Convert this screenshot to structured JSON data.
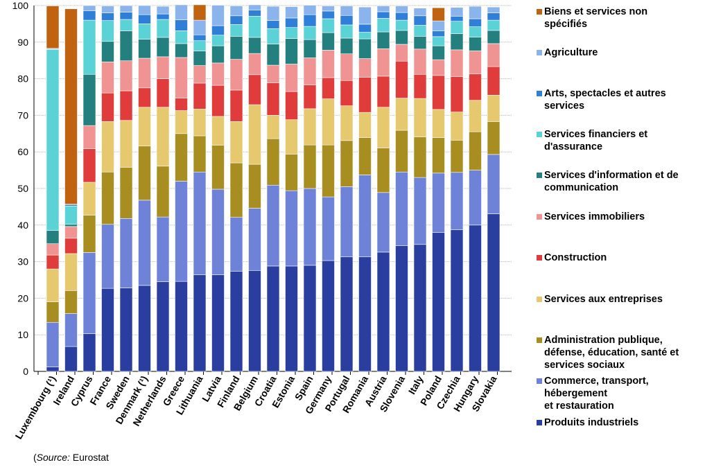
{
  "chart_data": {
    "type": "bar",
    "stacked": true,
    "ylim": [
      0,
      100
    ],
    "yticks": [
      0,
      10,
      20,
      30,
      40,
      50,
      60,
      70,
      80,
      90,
      100
    ],
    "grid": true,
    "legend_position": "right",
    "categories": [
      "Luxembourg (¹)",
      "Ireland",
      "Cyprus",
      "France",
      "Sweden",
      "Denmark (¹)",
      "Netherlands",
      "Greece",
      "Lithuania",
      "Latvia",
      "Finland",
      "Belgium",
      "Croatia",
      "Estonia",
      "Spain",
      "Germany",
      "Portugal",
      "Romania",
      "Austria",
      "Slovenia",
      "Italy",
      "Poland",
      "Czechia",
      "Hungary",
      "Slovakia"
    ],
    "series": [
      {
        "name": "Produits industriels",
        "color": "#2a3e9f",
        "values": [
          1.2,
          6.8,
          10.3,
          22.7,
          22.8,
          23.5,
          24.5,
          24.6,
          26.4,
          26.4,
          27.4,
          27.6,
          28.8,
          28.8,
          29.0,
          30.3,
          31.3,
          31.3,
          32.6,
          34.4,
          34.7,
          38.0,
          38.7,
          40.0,
          43.1
        ]
      },
      {
        "name": "Commerce, transport, hébergement\net restauration",
        "color": "#6e82d8",
        "values": [
          12.2,
          9.0,
          22.2,
          17.5,
          19.0,
          23.3,
          17.7,
          27.4,
          28.1,
          23.4,
          14.7,
          17.0,
          22.1,
          20.6,
          21.0,
          17.4,
          19.2,
          22.4,
          16.3,
          20.1,
          18.3,
          16.2,
          15.7,
          15.0,
          16.2
        ]
      },
      {
        "name": "Administration publique,\ndéfense, éducation, santé et\nservices sociaux",
        "color": "#a88d21",
        "values": [
          5.6,
          6.3,
          10.2,
          14.3,
          14.0,
          14.8,
          13.9,
          13.0,
          9.9,
          12.0,
          14.9,
          12.0,
          12.7,
          10.0,
          11.9,
          14.2,
          12.6,
          10.2,
          12.2,
          11.4,
          11.1,
          9.7,
          8.8,
          10.5,
          9.0
        ]
      },
      {
        "name": "Services aux entreprises",
        "color": "#e6c86e",
        "values": [
          9.0,
          10.1,
          9.0,
          13.8,
          12.8,
          10.6,
          16.1,
          6.3,
          7.3,
          7.9,
          11.3,
          16.3,
          6.4,
          9.4,
          9.9,
          12.6,
          9.5,
          6.9,
          11.1,
          8.8,
          10.5,
          7.7,
          7.7,
          8.6,
          7.2
        ]
      },
      {
        "name": "Construction",
        "color": "#e03c3c",
        "values": [
          3.8,
          4.2,
          9.2,
          7.8,
          8.1,
          5.3,
          7.8,
          3.4,
          7.1,
          8.5,
          8.6,
          8.2,
          8.9,
          7.7,
          6.5,
          5.8,
          6.9,
          9.6,
          8.5,
          10.1,
          6.6,
          9.3,
          9.7,
          7.2,
          7.8
        ]
      },
      {
        "name": "Services immobiliers",
        "color": "#f09393",
        "values": [
          3.1,
          3.2,
          6.3,
          8.5,
          8.2,
          8.1,
          6.0,
          11.1,
          4.8,
          6.1,
          8.4,
          5.8,
          4.8,
          7.5,
          7.4,
          7.5,
          7.3,
          5.1,
          7.5,
          4.6,
          6.9,
          4.3,
          7.3,
          6.3,
          6.3
        ]
      },
      {
        "name": "Services d'information et de\ncommunication",
        "color": "#23807e",
        "values": [
          3.6,
          0.6,
          14.0,
          5.6,
          8.2,
          5.2,
          5.3,
          3.8,
          4.0,
          4.7,
          6.3,
          4.4,
          5.8,
          7.0,
          5.0,
          4.8,
          4.3,
          5.4,
          4.6,
          3.8,
          3.5,
          3.8,
          4.4,
          3.8,
          3.6
        ]
      },
      {
        "name": "Services financiers et\nd'assurance",
        "color": "#5ad2d6",
        "values": [
          49.5,
          5.0,
          14.8,
          5.7,
          3.1,
          4.2,
          4.9,
          3.5,
          2.8,
          2.9,
          3.2,
          5.8,
          4.2,
          3.0,
          3.6,
          3.8,
          3.6,
          1.8,
          3.7,
          2.8,
          3.0,
          2.5,
          3.4,
          2.8,
          2.8
        ]
      },
      {
        "name": "Arts, spectacles et autres\nservices",
        "color": "#2f7fd8",
        "values": [
          0.2,
          0.4,
          2.6,
          2.1,
          2.0,
          2.5,
          1.5,
          3.0,
          1.6,
          2.6,
          2.4,
          1.7,
          2.2,
          2.6,
          3.2,
          2.1,
          2.6,
          2.2,
          1.8,
          2.1,
          2.6,
          1.6,
          1.4,
          2.2,
          2.0
        ]
      },
      {
        "name": "Agriculture",
        "color": "#8cb4ec",
        "values": [
          0.1,
          0.1,
          1.4,
          1.9,
          1.8,
          2.5,
          2.1,
          4.1,
          4.0,
          5.6,
          2.7,
          1.4,
          3.9,
          3.1,
          2.6,
          1.4,
          2.6,
          4.7,
          1.6,
          1.8,
          2.1,
          2.7,
          2.4,
          3.4,
          1.6
        ]
      },
      {
        "name": "Biens et services non\nspécifiés",
        "color": "#c06210",
        "values": [
          11.6,
          53.4,
          0,
          0,
          0,
          0,
          0,
          0,
          4.2,
          0,
          0,
          0,
          0,
          0,
          0,
          0,
          0,
          0,
          0,
          0,
          0,
          3.6,
          0,
          0,
          0
        ]
      }
    ],
    "source_label": "Source:",
    "source_text": "(Source: Eurostat"
  },
  "source": {
    "prefix": "(",
    "label": "Source:",
    "rest": " Eurostat"
  },
  "legend_labels": {
    "l10": "Biens et services non\nspécifiés",
    "l9": "Agriculture",
    "l8": "Arts, spectacles et autres\nservices",
    "l7": "Services financiers et\nd'assurance",
    "l6": "Services d'information et de\ncommunication",
    "l5": "Services immobiliers",
    "l4": "Construction",
    "l3": "Services aux entreprises",
    "l2": "Administration publique,\ndéfense, éducation, santé et\nservices sociaux",
    "l1": "Commerce, transport,\nhébergement\net restauration",
    "l0": "Produits industriels"
  }
}
